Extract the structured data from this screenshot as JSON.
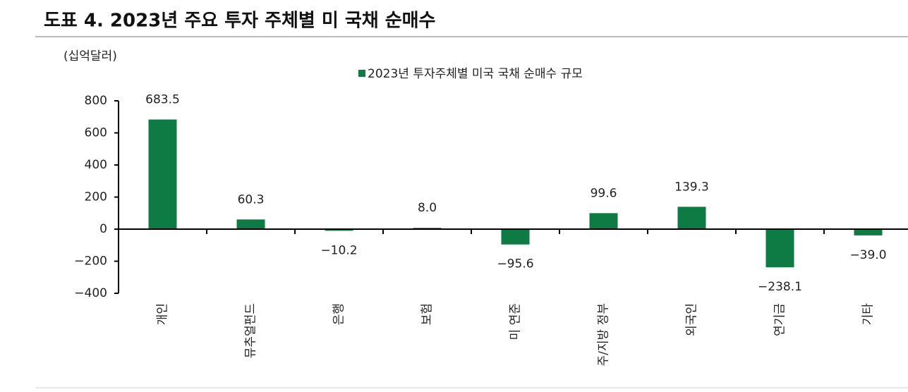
{
  "chart_data": {
    "type": "bar",
    "title": "도표 4. 2023년 주요 투자 주체별 미 국채 순매수",
    "y_label": "(십억달러)",
    "categories": [
      "개인",
      "뮤추얼펀드",
      "은행",
      "보험",
      "미 연준",
      "주/지방 정부",
      "외국인",
      "연기금",
      "기타"
    ],
    "series": [
      {
        "name": "2023년 투자주체별 미국 국채 순매수 규모",
        "color": "#0e7a44",
        "values": [
          683.5,
          60.3,
          -10.2,
          8.0,
          -95.6,
          99.6,
          139.3,
          -238.1,
          -39.0
        ],
        "value_labels": [
          "683.5",
          "60.3",
          "−10.2",
          "8.0",
          "−95.6",
          "99.6",
          "139.3",
          "−238.1",
          "−39.0"
        ]
      }
    ],
    "ylim": [
      -400,
      800
    ],
    "yticks": [
      {
        "value": -400,
        "label": "−400"
      },
      {
        "value": -200,
        "label": "−200"
      },
      0,
      200,
      400,
      600,
      800
    ],
    "grid": false
  }
}
